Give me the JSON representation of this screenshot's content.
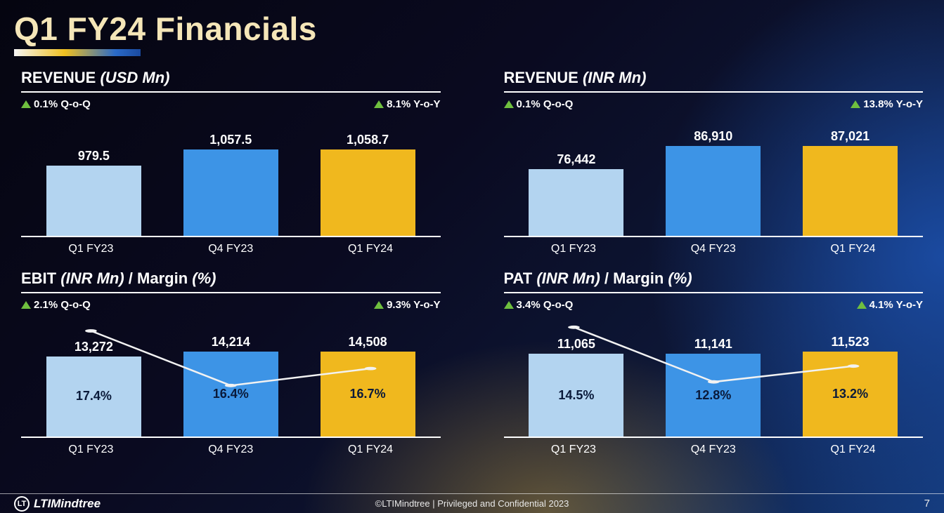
{
  "title": "Q1 FY24 Financials",
  "footer": {
    "brand": "LTIMindtree",
    "copyright": "©LTIMindtree | Privileged and Confidential 2023",
    "page": "7"
  },
  "colors": {
    "bar_light": "#b3d4f0",
    "bar_mid": "#3d94e6",
    "bar_accent": "#f0b81e",
    "line": "#f2f2f2",
    "delta_up": "#6fbf3f",
    "text": "#ffffff",
    "in_bar_text": "#0a1a3a",
    "title": "#f5e6b8"
  },
  "panels": [
    {
      "title_main": "REVENUE",
      "title_sub": "(USD  Mn)",
      "title_extra": "",
      "delta_left": "0.1% Q-o-Q",
      "delta_right": "8.1% Y-o-Y",
      "categories": [
        "Q1 FY23",
        "Q4 FY23",
        "Q1 FY24"
      ],
      "bars": [
        {
          "label": "979.5",
          "height_pct": 58,
          "color": "#b3d4f0"
        },
        {
          "label": "1,057.5",
          "height_pct": 71,
          "color": "#3d94e6"
        },
        {
          "label": "1,058.7",
          "height_pct": 71,
          "color": "#f0b81e"
        }
      ],
      "line": null
    },
    {
      "title_main": "REVENUE",
      "title_sub": "(INR Mn)",
      "title_extra": "",
      "delta_left": "0.1% Q-o-Q",
      "delta_right": "13.8% Y-o-Y",
      "categories": [
        "Q1 FY23",
        "Q4 FY23",
        "Q1 FY24"
      ],
      "bars": [
        {
          "label": "76,442",
          "height_pct": 55,
          "color": "#b3d4f0"
        },
        {
          "label": "86,910",
          "height_pct": 74,
          "color": "#3d94e6"
        },
        {
          "label": "87,021",
          "height_pct": 74,
          "color": "#f0b81e"
        }
      ],
      "line": null
    },
    {
      "title_main": "EBIT",
      "title_sub": "(INR Mn)",
      "title_extra": "Margin",
      "title_extra_sub": "(%)",
      "delta_left": "2.1% Q-o-Q",
      "delta_right": "9.3% Y-o-Y",
      "categories": [
        "Q1 FY23",
        "Q4 FY23",
        "Q1 FY24"
      ],
      "bars": [
        {
          "label": "13,272",
          "height_pct": 66,
          "color": "#b3d4f0",
          "in_label": "17.4%",
          "line_y_pct": 13
        },
        {
          "label": "14,214",
          "height_pct": 70,
          "color": "#3d94e6",
          "in_label": "16.4%",
          "line_y_pct": 58
        },
        {
          "label": "14,508",
          "height_pct": 70,
          "color": "#f0b81e",
          "in_label": "16.7%",
          "line_y_pct": 44
        }
      ],
      "line": true
    },
    {
      "title_main": "PAT",
      "title_sub": "(INR Mn)",
      "title_extra": "Margin",
      "title_extra_sub": "(%)",
      "delta_left": "3.4% Q-o-Q",
      "delta_right": "4.1% Y-o-Y",
      "categories": [
        "Q1 FY23",
        "Q4 FY23",
        "Q1 FY24"
      ],
      "bars": [
        {
          "label": "11,065",
          "height_pct": 68,
          "color": "#b3d4f0",
          "in_label": "14.5%",
          "line_y_pct": 10
        },
        {
          "label": "11,141",
          "height_pct": 68,
          "color": "#3d94e6",
          "in_label": "12.8%",
          "line_y_pct": 55
        },
        {
          "label": "11,523",
          "height_pct": 70,
          "color": "#f0b81e",
          "in_label": "13.2%",
          "line_y_pct": 42
        }
      ],
      "line": true
    }
  ]
}
